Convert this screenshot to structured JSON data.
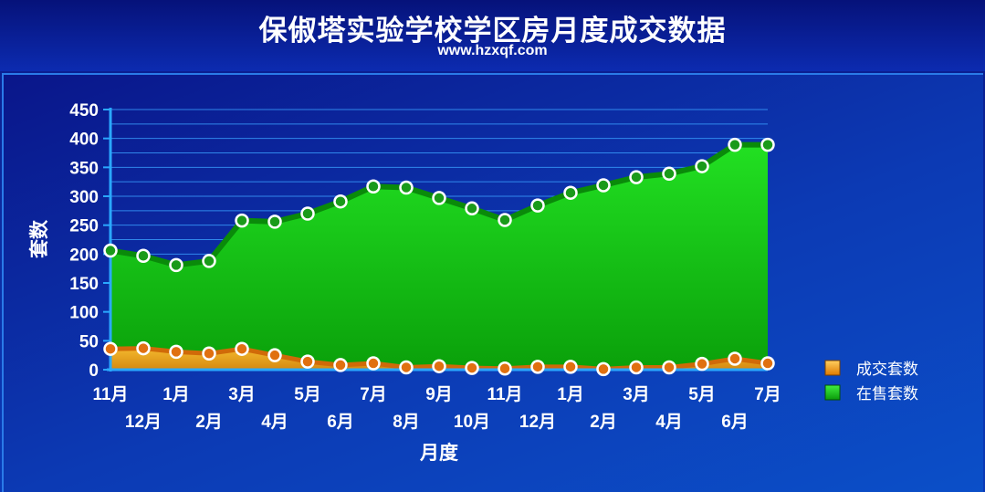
{
  "header": {
    "title": "保俶塔实验学校学区房月度成交数据",
    "subtitle": "www.hzxqf.com"
  },
  "colors": {
    "sold_fill": "#f0a020",
    "sold_line": "#d06a08",
    "listed_fill": "#18c418",
    "listed_line": "#0a8a0a",
    "grid": "#3aa0ff",
    "axis": "#2aa8ff",
    "marker_stroke": "#ffffff"
  },
  "chart_data": {
    "type": "area",
    "xlabel": "月度",
    "ylabel": "套数",
    "ylim": [
      0,
      450
    ],
    "yticks": [
      "0",
      "50",
      "100",
      "150",
      "200",
      "250",
      "300",
      "350",
      "400",
      "450"
    ],
    "categories": [
      "11月",
      "12月",
      "1月",
      "2月",
      "3月",
      "4月",
      "5月",
      "6月",
      "7月",
      "8月",
      "9月",
      "10月",
      "11月",
      "12月",
      "1月",
      "2月",
      "3月",
      "4月",
      "5月",
      "6月",
      "7月"
    ],
    "grid": true,
    "legend_position": "right",
    "series": [
      {
        "name": "成交套数",
        "values": [
          36,
          37,
          31,
          28,
          36,
          25,
          14,
          8,
          11,
          4,
          6,
          3,
          2,
          5,
          5,
          1,
          4,
          4,
          10,
          19,
          11
        ]
      },
      {
        "name": "在售套数",
        "values": [
          206,
          197,
          181,
          188,
          258,
          256,
          270,
          291,
          317,
          315,
          297,
          279,
          259,
          284,
          306,
          319,
          333,
          339,
          352,
          389,
          389
        ]
      }
    ]
  }
}
